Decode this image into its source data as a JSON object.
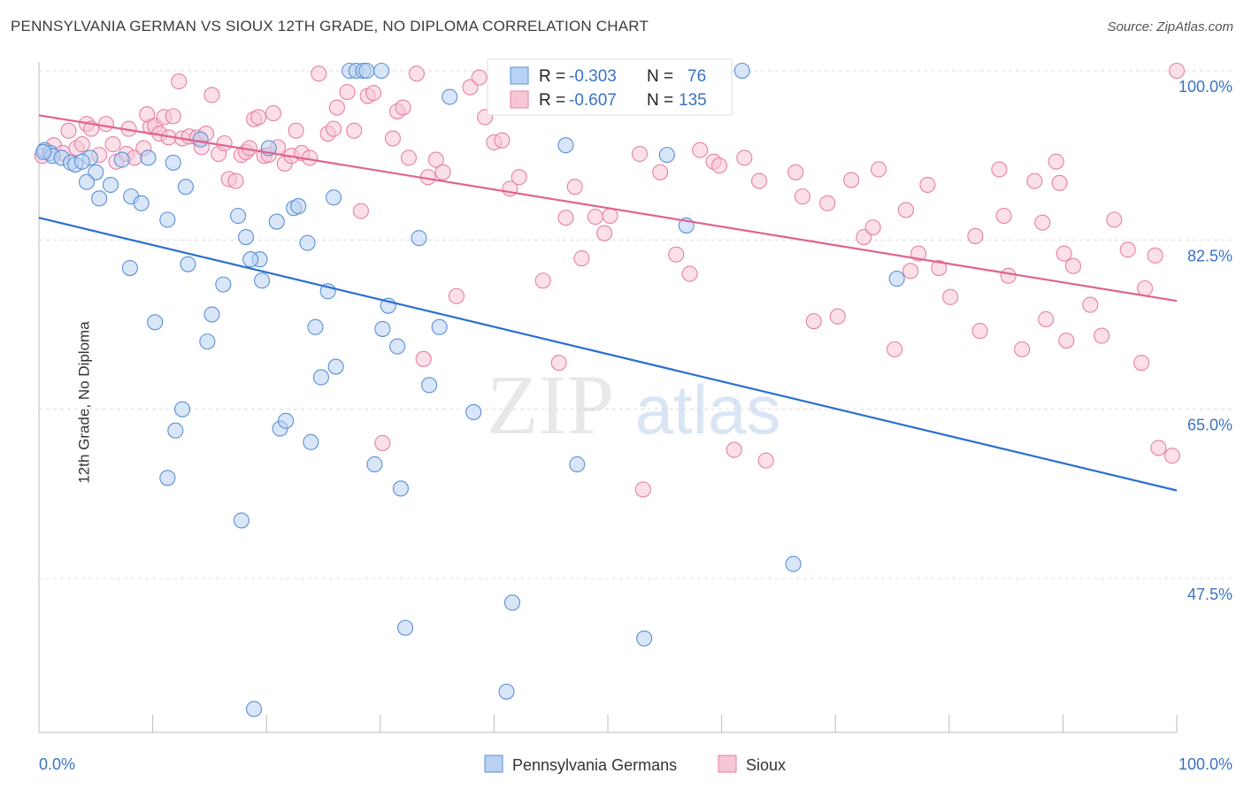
{
  "title": "PENNSYLVANIA GERMAN VS SIOUX 12TH GRADE, NO DIPLOMA CORRELATION CHART",
  "source": "Source: ZipAtlas.com",
  "watermark": {
    "zip": "ZIP",
    "atlas": "atlas"
  },
  "legend_box": {
    "rows": [
      {
        "r_label": "R =",
        "r_value": "-0.303",
        "n_label": "N =",
        "n_value": "76"
      },
      {
        "r_label": "R =",
        "r_value": "-0.607",
        "n_label": "N =",
        "n_value": "135"
      }
    ]
  },
  "bottom_legend": [
    {
      "label": "Pennsylvania Germans"
    },
    {
      "label": "Sioux"
    }
  ],
  "chart_data": {
    "type": "scatter",
    "title": "PENNSYLVANIA GERMAN VS SIOUX 12TH GRADE, NO DIPLOMA CORRELATION CHART",
    "xlabel": "",
    "ylabel": "12th Grade, No Diploma",
    "xlim": [
      0,
      100
    ],
    "ylim": [
      30,
      102
    ],
    "x_tick_labels": [
      "0.0%",
      "100.0%"
    ],
    "y_ticks": [
      47.5,
      65.0,
      82.5,
      100.0
    ],
    "y_tick_labels": [
      "47.5%",
      "65.0%",
      "82.5%",
      "100.0%"
    ],
    "grid": true,
    "colors": {
      "blue": "#5a8fd6",
      "pink": "#e87fa3",
      "blue_line": "#2a6fcf",
      "pink_line": "#e0628f",
      "blue_fill": "#b9d1f2",
      "pink_fill": "#f7c6d6",
      "axis_text": "#3a72c4"
    },
    "series": [
      {
        "name": "Pennsylvania Germans",
        "color": "blue",
        "R": -0.303,
        "N": 76,
        "trend": {
          "x": [
            0,
            100
          ],
          "y": [
            84.8,
            56.6
          ]
        },
        "points": [
          [
            0.5,
            91.8
          ],
          [
            1.0,
            91.5
          ],
          [
            1.2,
            91.2
          ],
          [
            2.0,
            91.0
          ],
          [
            2.8,
            90.5
          ],
          [
            3.2,
            90.3
          ],
          [
            4.5,
            91.0
          ],
          [
            5.0,
            89.5
          ],
          [
            4.2,
            88.5
          ],
          [
            5.3,
            86.8
          ],
          [
            6.3,
            88.2
          ],
          [
            7.3,
            90.8
          ],
          [
            8.1,
            87.0
          ],
          [
            9.0,
            86.3
          ],
          [
            8.0,
            79.6
          ],
          [
            9.6,
            91.0
          ],
          [
            10.2,
            74.0
          ],
          [
            11.3,
            84.6
          ],
          [
            11.8,
            90.5
          ],
          [
            12.9,
            88.0
          ],
          [
            13.1,
            80.0
          ],
          [
            12.6,
            65.0
          ],
          [
            12.0,
            62.8
          ],
          [
            11.3,
            57.9
          ],
          [
            14.2,
            92.9
          ],
          [
            15.2,
            74.8
          ],
          [
            17.5,
            85.0
          ],
          [
            16.2,
            77.9
          ],
          [
            14.8,
            72.0
          ],
          [
            18.2,
            82.8
          ],
          [
            17.8,
            53.5
          ],
          [
            19.4,
            80.5
          ],
          [
            18.6,
            80.5
          ],
          [
            18.9,
            34.0
          ],
          [
            19.6,
            78.3
          ],
          [
            20.2,
            92.0
          ],
          [
            20.9,
            84.4
          ],
          [
            21.2,
            63.0
          ],
          [
            21.7,
            63.8
          ],
          [
            22.4,
            85.8
          ],
          [
            22.8,
            86.0
          ],
          [
            23.6,
            82.2
          ],
          [
            23.9,
            61.6
          ],
          [
            24.3,
            73.5
          ],
          [
            24.8,
            68.3
          ],
          [
            25.4,
            77.2
          ],
          [
            25.9,
            86.9
          ],
          [
            26.1,
            69.4
          ],
          [
            27.3,
            100.0
          ],
          [
            27.9,
            100.0
          ],
          [
            28.5,
            100.0
          ],
          [
            28.8,
            100.0
          ],
          [
            30.1,
            100.0
          ],
          [
            29.5,
            59.3
          ],
          [
            30.2,
            73.3
          ],
          [
            30.7,
            75.7
          ],
          [
            31.5,
            71.5
          ],
          [
            31.8,
            56.8
          ],
          [
            32.2,
            42.4
          ],
          [
            33.4,
            82.7
          ],
          [
            34.3,
            67.5
          ],
          [
            35.2,
            73.5
          ],
          [
            36.1,
            97.3
          ],
          [
            38.2,
            64.7
          ],
          [
            41.1,
            35.8
          ],
          [
            41.6,
            45.0
          ],
          [
            46.3,
            92.3
          ],
          [
            47.3,
            59.3
          ],
          [
            53.2,
            41.3
          ],
          [
            55.2,
            91.3
          ],
          [
            56.9,
            84.0
          ],
          [
            61.8,
            100.0
          ],
          [
            66.3,
            49.0
          ],
          [
            75.4,
            78.5
          ],
          [
            0.4,
            91.6
          ],
          [
            3.8,
            90.6
          ]
        ]
      },
      {
        "name": "Sioux",
        "color": "pink",
        "R": -0.607,
        "N": 135,
        "trend": {
          "x": [
            0,
            100
          ],
          "y": [
            95.4,
            76.2
          ]
        },
        "points": [
          [
            0.3,
            91.2
          ],
          [
            1.3,
            92.3
          ],
          [
            2.1,
            91.5
          ],
          [
            2.6,
            93.8
          ],
          [
            3.3,
            92.0
          ],
          [
            3.8,
            92.4
          ],
          [
            4.2,
            94.5
          ],
          [
            4.6,
            94.0
          ],
          [
            5.3,
            91.3
          ],
          [
            5.9,
            94.5
          ],
          [
            6.5,
            92.4
          ],
          [
            6.8,
            90.6
          ],
          [
            7.7,
            91.4
          ],
          [
            7.9,
            94.0
          ],
          [
            8.4,
            91.0
          ],
          [
            9.2,
            92.0
          ],
          [
            9.8,
            94.2
          ],
          [
            9.5,
            95.5
          ],
          [
            10.2,
            94.3
          ],
          [
            10.6,
            93.5
          ],
          [
            11.0,
            95.2
          ],
          [
            11.4,
            93.1
          ],
          [
            11.8,
            95.3
          ],
          [
            12.3,
            98.9
          ],
          [
            12.6,
            93.0
          ],
          [
            13.2,
            93.2
          ],
          [
            13.9,
            93.1
          ],
          [
            14.3,
            92.1
          ],
          [
            14.7,
            93.5
          ],
          [
            15.2,
            97.5
          ],
          [
            15.8,
            91.4
          ],
          [
            16.3,
            92.5
          ],
          [
            16.7,
            88.8
          ],
          [
            17.3,
            88.6
          ],
          [
            17.8,
            91.3
          ],
          [
            18.2,
            91.6
          ],
          [
            18.5,
            92.0
          ],
          [
            18.9,
            95.0
          ],
          [
            19.3,
            95.2
          ],
          [
            19.8,
            91.2
          ],
          [
            20.2,
            91.3
          ],
          [
            20.6,
            95.6
          ],
          [
            21.0,
            92.1
          ],
          [
            21.6,
            90.4
          ],
          [
            22.2,
            91.2
          ],
          [
            22.6,
            93.8
          ],
          [
            23.1,
            91.5
          ],
          [
            23.8,
            91.0
          ],
          [
            24.6,
            99.7
          ],
          [
            25.4,
            93.5
          ],
          [
            25.9,
            94.0
          ],
          [
            26.2,
            96.2
          ],
          [
            27.1,
            97.8
          ],
          [
            27.7,
            93.8
          ],
          [
            28.3,
            85.5
          ],
          [
            28.9,
            97.4
          ],
          [
            29.4,
            97.7
          ],
          [
            30.2,
            61.5
          ],
          [
            31.1,
            93.0
          ],
          [
            31.5,
            95.8
          ],
          [
            32.0,
            96.2
          ],
          [
            32.5,
            91.0
          ],
          [
            33.2,
            99.7
          ],
          [
            33.8,
            70.2
          ],
          [
            34.2,
            89.0
          ],
          [
            34.9,
            90.8
          ],
          [
            35.5,
            89.5
          ],
          [
            36.7,
            76.7
          ],
          [
            37.9,
            98.3
          ],
          [
            38.7,
            99.3
          ],
          [
            39.2,
            95.2
          ],
          [
            40.0,
            92.6
          ],
          [
            40.7,
            92.8
          ],
          [
            41.4,
            87.8
          ],
          [
            42.2,
            89.0
          ],
          [
            44.3,
            78.3
          ],
          [
            45.7,
            69.8
          ],
          [
            46.3,
            84.8
          ],
          [
            47.1,
            88.0
          ],
          [
            47.7,
            80.6
          ],
          [
            48.9,
            84.9
          ],
          [
            49.7,
            83.2
          ],
          [
            50.2,
            85.0
          ],
          [
            52.8,
            91.4
          ],
          [
            53.1,
            56.7
          ],
          [
            54.6,
            89.5
          ],
          [
            56.0,
            81.0
          ],
          [
            57.2,
            79.0
          ],
          [
            58.1,
            91.8
          ],
          [
            59.3,
            90.6
          ],
          [
            59.8,
            90.2
          ],
          [
            61.1,
            60.8
          ],
          [
            62.0,
            91.0
          ],
          [
            63.3,
            88.6
          ],
          [
            63.9,
            59.7
          ],
          [
            66.5,
            89.5
          ],
          [
            67.1,
            87.0
          ],
          [
            68.1,
            74.1
          ],
          [
            69.3,
            86.3
          ],
          [
            70.2,
            74.6
          ],
          [
            71.4,
            88.7
          ],
          [
            72.5,
            82.8
          ],
          [
            73.3,
            83.8
          ],
          [
            73.8,
            89.8
          ],
          [
            75.2,
            71.2
          ],
          [
            76.2,
            85.6
          ],
          [
            76.6,
            79.3
          ],
          [
            77.3,
            81.1
          ],
          [
            78.1,
            88.2
          ],
          [
            79.1,
            79.6
          ],
          [
            80.1,
            76.6
          ],
          [
            82.3,
            82.9
          ],
          [
            82.7,
            73.1
          ],
          [
            84.4,
            89.8
          ],
          [
            84.8,
            85.0
          ],
          [
            85.2,
            78.8
          ],
          [
            86.4,
            71.2
          ],
          [
            87.5,
            88.6
          ],
          [
            88.2,
            84.3
          ],
          [
            88.5,
            74.3
          ],
          [
            89.4,
            90.6
          ],
          [
            89.7,
            88.4
          ],
          [
            90.1,
            81.1
          ],
          [
            90.3,
            72.1
          ],
          [
            90.9,
            79.8
          ],
          [
            92.4,
            75.8
          ],
          [
            93.4,
            72.6
          ],
          [
            94.5,
            84.6
          ],
          [
            95.7,
            81.5
          ],
          [
            96.9,
            69.8
          ],
          [
            97.2,
            77.5
          ],
          [
            98.1,
            80.9
          ],
          [
            98.4,
            61.0
          ],
          [
            99.6,
            60.2
          ],
          [
            100.0,
            100.0
          ]
        ]
      }
    ]
  }
}
